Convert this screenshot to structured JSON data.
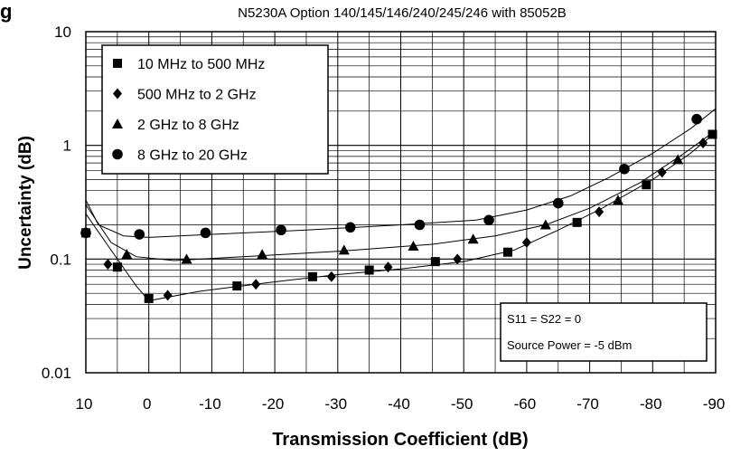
{
  "chart_data": {
    "type": "line",
    "title_fragment": "g",
    "subtitle": "N5230A Option 140/145/146/240/245/246 with 85052B",
    "xlabel": "Transmission Coefficient (dB)",
    "ylabel": "Uncertainty (dB)",
    "xlim": [
      10,
      -90
    ],
    "ylim": [
      0.01,
      10
    ],
    "yscale": "log",
    "grid": true,
    "x_ticks": [
      "10",
      "0",
      "-10",
      "-20",
      "-30",
      "-40",
      "-50",
      "-60",
      "-70",
      "-80",
      "-90"
    ],
    "y_ticks": [
      "10",
      "1",
      "0.1",
      "0.01"
    ],
    "legend_position": "top-left",
    "annotation": [
      "S11 = S22 = 0",
      "Source Power = -5 dBm"
    ],
    "series": [
      {
        "name": "10 MHz to 500 MHz",
        "marker": "square",
        "points": [
          [
            10,
            0.17
          ],
          [
            5,
            0.085
          ],
          [
            0,
            0.045
          ],
          [
            -14,
            0.058
          ],
          [
            -26,
            0.07
          ],
          [
            -35,
            0.08
          ],
          [
            -45.5,
            0.095
          ],
          [
            -57,
            0.115
          ],
          [
            -68,
            0.21
          ],
          [
            -79,
            0.45
          ],
          [
            -89.5,
            1.25
          ]
        ]
      },
      {
        "name": "500 MHz to 2 GHz",
        "marker": "diamond",
        "points": [
          [
            6.5,
            0.09
          ],
          [
            -3,
            0.048
          ],
          [
            -17,
            0.06
          ],
          [
            -29,
            0.07
          ],
          [
            -38,
            0.085
          ],
          [
            -49,
            0.1
          ],
          [
            -60,
            0.14
          ],
          [
            -71.5,
            0.26
          ],
          [
            -81.5,
            0.58
          ],
          [
            -88,
            1.05
          ]
        ]
      },
      {
        "name": "2 GHz to 8 GHz",
        "marker": "triangle",
        "points": [
          [
            3.5,
            0.11
          ],
          [
            -6,
            0.1
          ],
          [
            -18,
            0.11
          ],
          [
            -31,
            0.12
          ],
          [
            -42,
            0.13
          ],
          [
            -51.5,
            0.15
          ],
          [
            -63,
            0.2
          ],
          [
            -74.5,
            0.33
          ],
          [
            -84,
            0.75
          ]
        ]
      },
      {
        "name": "8 GHz to 20 GHz",
        "marker": "circle",
        "points": [
          [
            10,
            0.17
          ],
          [
            1.5,
            0.165
          ],
          [
            -9,
            0.17
          ],
          [
            -21,
            0.18
          ],
          [
            -32,
            0.19
          ],
          [
            -43,
            0.2
          ],
          [
            -54,
            0.22
          ],
          [
            -65,
            0.31
          ],
          [
            -75.5,
            0.62
          ],
          [
            -87,
            1.7
          ]
        ]
      }
    ],
    "curves": [
      {
        "series": "10 MHz to 500 MHz",
        "points": [
          [
            10,
            0.25
          ],
          [
            6,
            0.12
          ],
          [
            2,
            0.058
          ],
          [
            0,
            0.043
          ],
          [
            -8,
            0.052
          ],
          [
            -20,
            0.063
          ],
          [
            -30,
            0.073
          ],
          [
            -40,
            0.082
          ],
          [
            -50,
            0.095
          ],
          [
            -58,
            0.12
          ],
          [
            -65,
            0.18
          ],
          [
            -72,
            0.28
          ],
          [
            -80,
            0.5
          ],
          [
            -86,
            0.85
          ],
          [
            -90,
            1.3
          ]
        ]
      },
      {
        "series": "2 GHz to 8 GHz",
        "points": [
          [
            10,
            0.3
          ],
          [
            6,
            0.14
          ],
          [
            2,
            0.105
          ],
          [
            -4,
            0.097
          ],
          [
            -15,
            0.105
          ],
          [
            -30,
            0.117
          ],
          [
            -45,
            0.135
          ],
          [
            -55,
            0.16
          ],
          [
            -63,
            0.2
          ],
          [
            -70,
            0.28
          ],
          [
            -78,
            0.47
          ],
          [
            -85,
            0.85
          ],
          [
            -90,
            1.35
          ]
        ]
      },
      {
        "series": "8 GHz to 20 GHz",
        "points": [
          [
            10,
            0.33
          ],
          [
            8,
            0.2
          ],
          [
            4,
            0.16
          ],
          [
            0,
            0.155
          ],
          [
            -10,
            0.165
          ],
          [
            -25,
            0.18
          ],
          [
            -40,
            0.2
          ],
          [
            -52,
            0.22
          ],
          [
            -60,
            0.27
          ],
          [
            -67,
            0.36
          ],
          [
            -73,
            0.52
          ],
          [
            -80,
            0.85
          ],
          [
            -86,
            1.4
          ],
          [
            -90,
            2.1
          ]
        ]
      }
    ]
  }
}
